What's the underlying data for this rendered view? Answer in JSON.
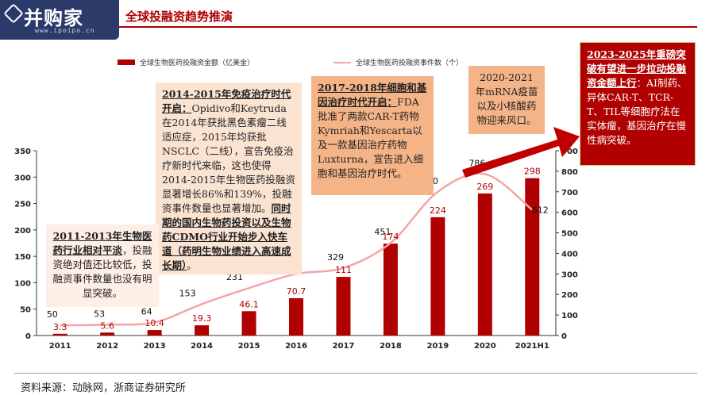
{
  "header": {
    "logo_text": "并购家",
    "logo_url": "www.ipoipo.cn",
    "title": "全球投融资趋势推演"
  },
  "legend": {
    "bar_label": "全球生物医药投融资金额（亿美金）",
    "line_label": "全球生物医药投融资事件数（个）"
  },
  "annotations": {
    "box_2011": {
      "heading": "2011-2013年生物医药行业相对平淡",
      "body": "，投融资绝对值还比较低，投融资事件数量也没有明显突破。"
    },
    "box_2014": {
      "heading": "2014-2015年免疫治疗时代开启：",
      "body": "Opidivo和Keytruda在2014年获批黑色素瘤二线适应症，2015年均获批NSCLC（二线），宣告免疫治疗新时代来临，这也使得2014-2015年生物医药投融资显著增长86%和139%，投融资事件数量也显著增加。",
      "heading2": "同时期的国内生物药投资以及生物药CDMO行业开始步入快车道（药明生物业绩进入高速成长期）",
      "tail": "。"
    },
    "box_2017": {
      "heading": "2017-2018年细胞和基因治疗时代开启：",
      "body": "FDA批准了两款CAR-T药物Kymriah和Yescarta以及一款基因治疗药物Luxturna，宣告进入细胞和基因治疗时代。"
    },
    "box_2020": {
      "body": "2020-2021年mRNA疫苗以及小核酸药物迎来风口。"
    },
    "box_2023": {
      "heading": "2023-2025年重磅突破有望进一步拉动投融资金额上行",
      "colon": "：",
      "body": "AI制药、异体CAR-T、TCR-T、TIL等细胞疗法在实体瘤，基因治疗在慢性病突破。"
    }
  },
  "source": "资料来源：动脉网，浙商证券研究所",
  "chart_data": {
    "type": "bar",
    "categories": [
      "2011",
      "2012",
      "2013",
      "2014",
      "2015",
      "2016",
      "2017",
      "2018",
      "2019",
      "2020",
      "2021H1"
    ],
    "series": [
      {
        "name": "全球生物医药投融资金额（亿美金）",
        "type": "bar",
        "axis": "left",
        "values": [
          3.3,
          5.6,
          10.4,
          19.3,
          46.1,
          70.7,
          111,
          174,
          224,
          269,
          298
        ],
        "labels": [
          "3.3",
          "5.6",
          "10.4",
          "19.3",
          "46.1",
          "70.7",
          "111",
          "174",
          "224",
          "269",
          "298"
        ]
      },
      {
        "name": "全球生物医药投融资事件数（个）",
        "type": "line",
        "axis": "right",
        "values": [
          50,
          53,
          64,
          153,
          231,
          300,
          329,
          451,
          700,
          786,
          612
        ],
        "labels": [
          "50",
          "53",
          "64",
          "153",
          "231",
          "",
          "329",
          "451",
          "700",
          "786",
          "612"
        ]
      }
    ],
    "y_left": {
      "ticks": [
        "0",
        "50",
        "100",
        "150",
        "200",
        "250",
        "300",
        "350"
      ],
      "lim": [
        0,
        350
      ]
    },
    "y_right": {
      "ticks": [
        "0",
        "100",
        "200",
        "300",
        "400",
        "500",
        "600",
        "700",
        "800",
        "900"
      ],
      "lim": [
        0,
        900
      ]
    },
    "colors": {
      "bar": "#b00000",
      "line": "#f4a6a6",
      "bar_label": "#b00000"
    }
  }
}
